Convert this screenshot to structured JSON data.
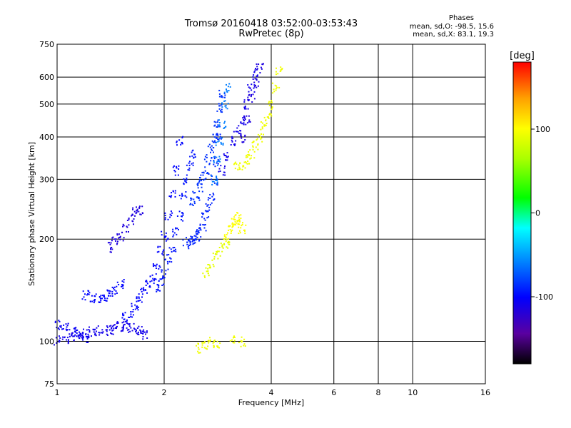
{
  "header": {
    "title_line1": "Tromsø 20160418 03:52:00-03:53:43",
    "title_line2": "RwPretec (8p)"
  },
  "stats": {
    "heading": "Phases",
    "line_o": "mean, sd,O: -98.5, 15.6",
    "line_x": "mean, sd,X: 83.1, 19.3"
  },
  "chart_data": {
    "type": "scatter",
    "xlabel": "Frequency [MHz]",
    "ylabel": "Stationary phase Virtual Height [km]",
    "xscale": "log",
    "yscale": "log",
    "xlim": [
      1,
      16
    ],
    "ylim": [
      75,
      750
    ],
    "xticks": [
      1,
      2,
      4,
      6,
      8,
      10,
      16
    ],
    "yticks": [
      75,
      100,
      200,
      300,
      400,
      500,
      600,
      750
    ],
    "colorbar": {
      "label": "[deg]",
      "range": [
        -180,
        180
      ],
      "ticks": [
        100,
        0,
        -100
      ]
    },
    "traces": [
      {
        "name": "",
        "phase": -110,
        "x": [
          1.0,
          1.05,
          1.1,
          1.15,
          1.2,
          1.25,
          1.3,
          1.35,
          1.4,
          1.45,
          1.5,
          1.55,
          1.6,
          1.65,
          1.7,
          1.75
        ],
        "y": [
          101,
          102,
          104,
          104,
          106,
          107,
          108,
          108,
          109,
          110,
          111,
          112,
          110,
          109,
          108,
          105
        ]
      },
      {
        "name": "",
        "phase": -105,
        "x": [
          1.0,
          1.05,
          1.1,
          1.15,
          1.2
        ],
        "y": [
          112,
          110,
          107,
          105,
          103
        ]
      },
      {
        "name": "",
        "phase": -100,
        "x": [
          1.2,
          1.25,
          1.3,
          1.35,
          1.4,
          1.45,
          1.5
        ],
        "y": [
          137,
          135,
          134,
          135,
          138,
          142,
          148
        ]
      },
      {
        "name": "",
        "phase": -115,
        "x": [
          1.4,
          1.45,
          1.5,
          1.55,
          1.6,
          1.65,
          1.7
        ],
        "y": [
          190,
          200,
          205,
          215,
          230,
          243,
          243
        ]
      },
      {
        "name": "",
        "phase": -100,
        "x": [
          1.55,
          1.6,
          1.65,
          1.7,
          1.75,
          1.8,
          1.85,
          1.9,
          1.95,
          2.0,
          2.05,
          2.1,
          2.15,
          2.2
        ],
        "y": [
          118,
          122,
          128,
          134,
          140,
          147,
          155,
          168,
          185,
          205,
          235,
          270,
          320,
          390
        ]
      },
      {
        "name": "",
        "phase": -95,
        "x": [
          1.9,
          1.95,
          2.0,
          2.05,
          2.1,
          2.15,
          2.2,
          2.25,
          2.3,
          2.35,
          2.4
        ],
        "y": [
          145,
          150,
          160,
          175,
          190,
          210,
          235,
          270,
          300,
          330,
          360
        ]
      },
      {
        "name": "",
        "phase": -90,
        "x": [
          2.3,
          2.35,
          2.4,
          2.45,
          2.5,
          2.55,
          2.6,
          2.65,
          2.7,
          2.75,
          2.8,
          2.85
        ],
        "y": [
          195,
          198,
          200,
          205,
          210,
          220,
          235,
          250,
          270,
          300,
          340,
          400
        ]
      },
      {
        "name": "",
        "phase": -85,
        "x": [
          2.4,
          2.45,
          2.5,
          2.55,
          2.6,
          2.65,
          2.7,
          2.75,
          2.8,
          2.85,
          2.9
        ],
        "y": [
          260,
          270,
          285,
          300,
          320,
          345,
          370,
          400,
          440,
          490,
          540
        ]
      },
      {
        "name": "",
        "phase": -60,
        "x": [
          2.75,
          2.8,
          2.85,
          2.9,
          2.95,
          3.0
        ],
        "y": [
          300,
          340,
          390,
          440,
          500,
          560
        ]
      },
      {
        "name": "",
        "phase": -110,
        "x": [
          2.9,
          3.0,
          3.1,
          3.2,
          3.3,
          3.4,
          3.5,
          3.6
        ],
        "y": [
          320,
          350,
          390,
          420,
          450,
          500,
          560,
          620
        ]
      },
      {
        "name": "",
        "phase": -115,
        "x": [
          3.3,
          3.4,
          3.5,
          3.6,
          3.7
        ],
        "y": [
          400,
          450,
          520,
          580,
          640
        ]
      },
      {
        "name": "",
        "phase": 95,
        "x": [
          3.2,
          3.3,
          3.4,
          3.5,
          3.6,
          3.7,
          3.8,
          3.9,
          4.0,
          4.1,
          4.2
        ],
        "y": [
          330,
          330,
          345,
          360,
          380,
          400,
          430,
          460,
          500,
          560,
          630
        ]
      },
      {
        "name": "",
        "phase": 100,
        "x": [
          3.0,
          3.05,
          3.1,
          3.15,
          3.2,
          3.25,
          3.3
        ],
        "y": [
          205,
          215,
          225,
          230,
          235,
          225,
          215
        ]
      },
      {
        "name": "",
        "phase": 90,
        "x": [
          2.6,
          2.7,
          2.8,
          2.9,
          3.0
        ],
        "y": [
          160,
          170,
          180,
          190,
          195
        ]
      },
      {
        "name": "",
        "phase": 95,
        "x": [
          2.5,
          2.6,
          2.7,
          2.8,
          3.1,
          3.3
        ],
        "y": [
          96,
          98,
          100,
          98,
          101,
          100
        ]
      }
    ]
  }
}
